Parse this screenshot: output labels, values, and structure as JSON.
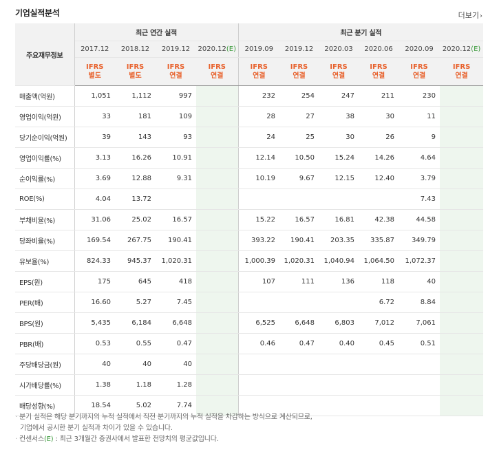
{
  "title": "기업실적분석",
  "more_label": "더보기",
  "header": {
    "row_label": "주요재무정보",
    "annual_group": "최근 연간 실적",
    "quarter_group": "최근 분기 실적",
    "periods": [
      "2017.12",
      "2018.12",
      "2019.12",
      "2020.12",
      "2019.09",
      "2019.12",
      "2020.03",
      "2020.06",
      "2020.09",
      "2020.12"
    ],
    "estimate_mark": "(E)",
    "ifrs": "IFRS",
    "basis": [
      "별도",
      "별도",
      "연결",
      "연결",
      "연결",
      "연결",
      "연결",
      "연결",
      "연결",
      "연결"
    ]
  },
  "rows": [
    {
      "label": "매출액(억원)",
      "values": [
        "1,051",
        "1,112",
        "997",
        "",
        "232",
        "254",
        "247",
        "211",
        "230",
        ""
      ]
    },
    {
      "label": "영업이익(억원)",
      "values": [
        "33",
        "181",
        "109",
        "",
        "28",
        "27",
        "38",
        "30",
        "11",
        ""
      ]
    },
    {
      "label": "당기순이익(억원)",
      "values": [
        "39",
        "143",
        "93",
        "",
        "24",
        "25",
        "30",
        "26",
        "9",
        ""
      ]
    },
    {
      "label": "영업이익률(%)",
      "values": [
        "3.13",
        "16.26",
        "10.91",
        "",
        "12.14",
        "10.50",
        "15.24",
        "14.26",
        "4.64",
        ""
      ]
    },
    {
      "label": "순이익률(%)",
      "values": [
        "3.69",
        "12.88",
        "9.31",
        "",
        "10.19",
        "9.67",
        "12.15",
        "12.40",
        "3.79",
        ""
      ]
    },
    {
      "label": "ROE(%)",
      "values": [
        "4.04",
        "13.72",
        "",
        "",
        "",
        "",
        "",
        "",
        "7.43",
        ""
      ]
    },
    {
      "label": "부채비율(%)",
      "values": [
        "31.06",
        "25.02",
        "16.57",
        "",
        "15.22",
        "16.57",
        "16.81",
        "42.38",
        "44.58",
        ""
      ]
    },
    {
      "label": "당좌비율(%)",
      "values": [
        "169.54",
        "267.75",
        "190.41",
        "",
        "393.22",
        "190.41",
        "203.35",
        "335.87",
        "349.79",
        ""
      ]
    },
    {
      "label": "유보율(%)",
      "values": [
        "824.33",
        "945.37",
        "1,020.31",
        "",
        "1,000.39",
        "1,020.31",
        "1,040.94",
        "1,064.50",
        "1,072.37",
        ""
      ]
    },
    {
      "label": "EPS(원)",
      "values": [
        "175",
        "645",
        "418",
        "",
        "107",
        "111",
        "136",
        "118",
        "40",
        ""
      ]
    },
    {
      "label": "PER(배)",
      "values": [
        "16.60",
        "5.27",
        "7.45",
        "",
        "",
        "",
        "",
        "6.72",
        "8.84",
        ""
      ]
    },
    {
      "label": "BPS(원)",
      "values": [
        "5,435",
        "6,184",
        "6,648",
        "",
        "6,525",
        "6,648",
        "6,803",
        "7,012",
        "7,061",
        ""
      ]
    },
    {
      "label": "PBR(배)",
      "values": [
        "0.53",
        "0.55",
        "0.47",
        "",
        "0.46",
        "0.47",
        "0.40",
        "0.45",
        "0.51",
        ""
      ]
    },
    {
      "label": "주당배당금(원)",
      "values": [
        "40",
        "40",
        "40",
        "",
        "",
        "",
        "",
        "",
        "",
        ""
      ]
    },
    {
      "label": "시가배당률(%)",
      "values": [
        "1.38",
        "1.18",
        "1.28",
        "",
        "",
        "",
        "",
        "",
        "",
        ""
      ]
    },
    {
      "label": "배당성향(%)",
      "values": [
        "18.54",
        "5.02",
        "7.74",
        "",
        "",
        "",
        "",
        "",
        "",
        ""
      ]
    }
  ],
  "notes": {
    "line1": "분기 실적은 해당 분기까지의 누적 실적에서 직전 분기까지의 누적 실적을 차감하는 방식으로 계산되므로,",
    "line2": "기업에서 공시한 분기 실적과 차이가 있을 수 있습니다.",
    "line3_prefix": "컨센서스",
    "line3_mark": "(E)",
    "line3_rest": " : 최근 3개월간 증권사에서 발표한 전망치의 평균값입니다."
  }
}
